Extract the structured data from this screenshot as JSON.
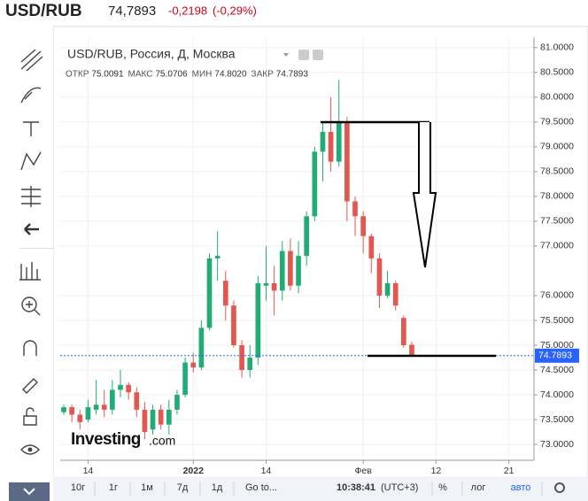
{
  "header": {
    "symbol": "USD/RUB",
    "price": "74,7893",
    "change": "-0,2198",
    "change_pct": "(-0,29%)"
  },
  "chart_data": {
    "type": "candlestick",
    "title": "USD/RUB, Россия, Д, Москва",
    "ohlc_labels": [
      "ОТКР",
      "МАКС",
      "МИН",
      "ЗАКР"
    ],
    "legend_values": [
      "75.0091",
      "75.0706",
      "74.8020",
      "74.7893"
    ],
    "x": [
      0,
      1,
      2,
      3,
      4,
      5,
      6,
      7,
      8,
      9,
      10,
      11,
      12,
      13,
      14,
      15,
      16,
      17,
      18,
      19,
      20,
      21,
      22,
      23,
      24,
      25,
      26,
      27,
      28,
      29,
      30,
      31,
      32,
      33,
      34,
      35,
      36,
      37,
      38,
      39,
      40,
      41,
      42,
      43
    ],
    "open": [
      73.65,
      73.75,
      73.6,
      73.5,
      73.7,
      73.8,
      73.7,
      74.1,
      74.2,
      74.05,
      73.7,
      73.3,
      73.7,
      73.4,
      73.7,
      74.0,
      74.65,
      74.55,
      75.35,
      76.75,
      76.3,
      75.8,
      75.0,
      74.5,
      74.75,
      76.2,
      76.25,
      76.1,
      76.9,
      76.2,
      76.8,
      77.6,
      78.9,
      79.3,
      78.7,
      79.5,
      77.9,
      77.6,
      77.2,
      76.75,
      76.0,
      76.25,
      75.55,
      75.0091
    ],
    "high": [
      73.8,
      73.8,
      73.7,
      73.9,
      74.3,
      74.1,
      74.3,
      74.5,
      74.25,
      74.15,
      73.85,
      73.8,
      73.8,
      73.9,
      74.1,
      74.75,
      74.85,
      75.5,
      76.85,
      77.3,
      76.5,
      75.9,
      75.1,
      75.0,
      76.4,
      77.0,
      76.6,
      77.1,
      77.15,
      77.1,
      77.7,
      79.0,
      79.5,
      80.0,
      80.35,
      79.6,
      78.0,
      77.7,
      77.25,
      76.85,
      76.5,
      76.3,
      75.6,
      75.0706
    ],
    "low": [
      73.6,
      73.45,
      73.3,
      73.45,
      73.6,
      73.55,
      73.6,
      73.95,
      73.9,
      73.55,
      73.1,
      73.2,
      73.3,
      73.2,
      73.6,
      73.95,
      74.45,
      74.5,
      75.3,
      76.3,
      75.5,
      74.95,
      74.35,
      74.35,
      74.6,
      75.9,
      75.6,
      75.9,
      76.1,
      76.05,
      76.6,
      77.5,
      78.3,
      78.5,
      78.6,
      77.5,
      77.2,
      76.85,
      76.45,
      75.75,
      75.95,
      75.7,
      74.95,
      74.802
    ],
    "close": [
      73.75,
      73.6,
      73.45,
      73.75,
      73.8,
      73.7,
      74.1,
      74.2,
      74.05,
      73.7,
      73.25,
      73.7,
      73.4,
      73.7,
      74.0,
      74.65,
      74.55,
      75.35,
      76.75,
      76.8,
      75.8,
      75.0,
      74.5,
      74.75,
      76.25,
      76.25,
      76.1,
      76.9,
      76.2,
      76.8,
      77.6,
      78.9,
      79.3,
      78.7,
      79.5,
      77.9,
      77.6,
      77.2,
      76.75,
      76.0,
      76.25,
      75.8,
      75.0,
      74.7893
    ],
    "up_color": "#22ab76",
    "down_color": "#e2574f",
    "last_line_color": "#2962ff",
    "xlim": [
      -0.44,
      58.1
    ],
    "xticks": [
      {
        "value": 3,
        "label": "14"
      },
      {
        "value": 16,
        "label": "2022"
      },
      {
        "value": 25,
        "label": "14"
      },
      {
        "value": 37,
        "label": "Фев"
      },
      {
        "value": 46,
        "label": "12"
      },
      {
        "value": 55,
        "label": "21"
      }
    ],
    "ylim": [
      72.68,
      81.21
    ],
    "yticks": [
      {
        "value": 81,
        "label": "81.0000"
      },
      {
        "value": 80.5,
        "label": "80.5000"
      },
      {
        "value": 80,
        "label": "80.0000"
      },
      {
        "value": 79.5,
        "label": "79.5000"
      },
      {
        "value": 79,
        "label": "79.0000"
      },
      {
        "value": 78.5,
        "label": "78.5000"
      },
      {
        "value": 78,
        "label": "78.0000"
      },
      {
        "value": 77.5,
        "label": "77.5000"
      },
      {
        "value": 77,
        "label": "77.0000"
      },
      {
        "value": 76,
        "label": "76.0000"
      },
      {
        "value": 75.5,
        "label": "75.5000"
      },
      {
        "value": 75,
        "label": "75.0000"
      },
      {
        "value": 74.5,
        "label": "74.5000"
      },
      {
        "value": 74,
        "label": "74.0000"
      },
      {
        "value": 73.5,
        "label": "73.5000"
      },
      {
        "value": 73,
        "label": "73.0000"
      }
    ],
    "grid": true,
    "watermark": "Investing",
    "watermark_suffix": ".com"
  },
  "toolbar": {
    "ranges": [
      "10г",
      "1г",
      "1м",
      "7д",
      "1д"
    ],
    "goto": "Go to...",
    "time": "10:38:41",
    "timezone": "(UTC+3)",
    "options": [
      "%",
      "лог",
      "авто"
    ]
  }
}
